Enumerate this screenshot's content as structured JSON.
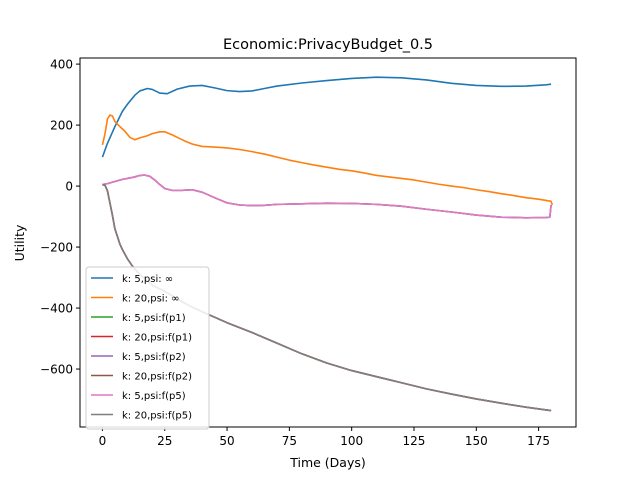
{
  "chart_data": {
    "type": "line",
    "title": "Economic:PrivacyBudget_0.5",
    "xlabel": "Time (Days)",
    "ylabel": "Utility",
    "xlim": [
      -9,
      190
    ],
    "ylim": [
      -790,
      420
    ],
    "xticks": [
      0,
      25,
      50,
      75,
      100,
      125,
      150,
      175
    ],
    "yticks": [
      -600,
      -400,
      -200,
      0,
      200,
      400
    ],
    "ytick_labels": [
      "−600",
      "−400",
      "−200",
      "0",
      "200",
      "400"
    ],
    "grid": false,
    "legend_position": "lower-left",
    "series": [
      {
        "name": "k: 5,psi: ∞",
        "color": "#1f77b4",
        "points": [
          [
            0,
            95
          ],
          [
            2,
            140
          ],
          [
            5,
            195
          ],
          [
            8,
            245
          ],
          [
            10,
            268
          ],
          [
            13,
            298
          ],
          [
            15,
            312
          ],
          [
            18,
            320
          ],
          [
            20,
            317
          ],
          [
            23,
            305
          ],
          [
            26,
            303
          ],
          [
            30,
            318
          ],
          [
            35,
            328
          ],
          [
            40,
            330
          ],
          [
            45,
            322
          ],
          [
            50,
            313
          ],
          [
            55,
            310
          ],
          [
            60,
            312
          ],
          [
            65,
            320
          ],
          [
            70,
            328
          ],
          [
            80,
            338
          ],
          [
            90,
            346
          ],
          [
            100,
            353
          ],
          [
            110,
            357
          ],
          [
            120,
            355
          ],
          [
            130,
            348
          ],
          [
            140,
            337
          ],
          [
            150,
            330
          ],
          [
            160,
            327
          ],
          [
            170,
            328
          ],
          [
            178,
            332
          ],
          [
            180,
            334
          ]
        ]
      },
      {
        "name": "k: 20,psi: ∞",
        "color": "#ff7f0e",
        "points": [
          [
            0,
            135
          ],
          [
            1,
            170
          ],
          [
            2,
            220
          ],
          [
            3,
            233
          ],
          [
            4,
            230
          ],
          [
            5,
            212
          ],
          [
            7,
            195
          ],
          [
            9,
            180
          ],
          [
            11,
            160
          ],
          [
            13,
            152
          ],
          [
            15,
            158
          ],
          [
            18,
            165
          ],
          [
            20,
            172
          ],
          [
            23,
            178
          ],
          [
            25,
            178
          ],
          [
            28,
            168
          ],
          [
            30,
            160
          ],
          [
            33,
            148
          ],
          [
            36,
            138
          ],
          [
            40,
            130
          ],
          [
            45,
            128
          ],
          [
            50,
            125
          ],
          [
            55,
            120
          ],
          [
            60,
            113
          ],
          [
            65,
            105
          ],
          [
            70,
            95
          ],
          [
            75,
            85
          ],
          [
            80,
            77
          ],
          [
            85,
            69
          ],
          [
            90,
            62
          ],
          [
            95,
            55
          ],
          [
            100,
            50
          ],
          [
            105,
            43
          ],
          [
            110,
            35
          ],
          [
            115,
            30
          ],
          [
            120,
            25
          ],
          [
            125,
            20
          ],
          [
            130,
            13
          ],
          [
            135,
            6
          ],
          [
            140,
            0
          ],
          [
            145,
            -5
          ],
          [
            150,
            -12
          ],
          [
            155,
            -18
          ],
          [
            160,
            -25
          ],
          [
            165,
            -31
          ],
          [
            170,
            -38
          ],
          [
            175,
            -43
          ],
          [
            178,
            -47
          ],
          [
            180,
            -50
          ],
          [
            180.5,
            -62
          ]
        ]
      },
      {
        "name": "k: 5,psi:f(p1)",
        "color": "#2ca02c",
        "points": [
          [
            0,
            5
          ],
          [
            2,
            8
          ],
          [
            5,
            15
          ],
          [
            8,
            22
          ],
          [
            10,
            25
          ],
          [
            13,
            30
          ],
          [
            15,
            35
          ],
          [
            17,
            36
          ],
          [
            19,
            32
          ],
          [
            21,
            20
          ],
          [
            23,
            5
          ],
          [
            25,
            -8
          ],
          [
            28,
            -14
          ],
          [
            32,
            -14
          ],
          [
            36,
            -12
          ],
          [
            40,
            -20
          ],
          [
            45,
            -38
          ],
          [
            50,
            -55
          ],
          [
            55,
            -62
          ],
          [
            60,
            -64
          ],
          [
            65,
            -63
          ],
          [
            70,
            -60
          ],
          [
            80,
            -58
          ],
          [
            90,
            -56
          ],
          [
            100,
            -57
          ],
          [
            110,
            -60
          ],
          [
            120,
            -66
          ],
          [
            130,
            -76
          ],
          [
            140,
            -85
          ],
          [
            150,
            -95
          ],
          [
            160,
            -102
          ],
          [
            170,
            -104
          ],
          [
            178,
            -103
          ],
          [
            179.5,
            -102
          ],
          [
            180,
            -62
          ]
        ]
      },
      {
        "name": "k: 20,psi:f(p1)",
        "color": "#d62728",
        "points": [
          [
            0,
            5
          ],
          [
            1,
            3
          ],
          [
            2,
            -15
          ],
          [
            3,
            -55
          ],
          [
            4,
            -95
          ],
          [
            5,
            -140
          ],
          [
            6,
            -165
          ],
          [
            7,
            -190
          ],
          [
            8,
            -208
          ],
          [
            10,
            -238
          ],
          [
            12,
            -262
          ],
          [
            15,
            -290
          ],
          [
            18,
            -310
          ],
          [
            20,
            -325
          ],
          [
            25,
            -345
          ],
          [
            30,
            -370
          ],
          [
            35,
            -393
          ],
          [
            40,
            -412
          ],
          [
            50,
            -448
          ],
          [
            60,
            -480
          ],
          [
            70,
            -515
          ],
          [
            80,
            -550
          ],
          [
            90,
            -580
          ],
          [
            100,
            -605
          ],
          [
            110,
            -625
          ],
          [
            120,
            -645
          ],
          [
            130,
            -665
          ],
          [
            140,
            -682
          ],
          [
            150,
            -698
          ],
          [
            160,
            -712
          ],
          [
            170,
            -725
          ],
          [
            178,
            -734
          ],
          [
            180,
            -736
          ]
        ]
      },
      {
        "name": "k: 5,psi:f(p2)",
        "color": "#9467bd",
        "points": [
          [
            0,
            5
          ],
          [
            2,
            8
          ],
          [
            5,
            15
          ],
          [
            8,
            22
          ],
          [
            10,
            25
          ],
          [
            13,
            30
          ],
          [
            15,
            35
          ],
          [
            17,
            36
          ],
          [
            19,
            32
          ],
          [
            21,
            20
          ],
          [
            23,
            5
          ],
          [
            25,
            -8
          ],
          [
            28,
            -14
          ],
          [
            32,
            -14
          ],
          [
            36,
            -12
          ],
          [
            40,
            -20
          ],
          [
            45,
            -38
          ],
          [
            50,
            -55
          ],
          [
            55,
            -62
          ],
          [
            60,
            -64
          ],
          [
            65,
            -63
          ],
          [
            70,
            -60
          ],
          [
            80,
            -58
          ],
          [
            90,
            -56
          ],
          [
            100,
            -57
          ],
          [
            110,
            -60
          ],
          [
            120,
            -66
          ],
          [
            130,
            -76
          ],
          [
            140,
            -85
          ],
          [
            150,
            -95
          ],
          [
            160,
            -102
          ],
          [
            170,
            -104
          ],
          [
            178,
            -103
          ],
          [
            179.5,
            -102
          ],
          [
            180,
            -62
          ]
        ]
      },
      {
        "name": "k: 20,psi:f(p2)",
        "color": "#8c564b",
        "points": [
          [
            0,
            5
          ],
          [
            1,
            3
          ],
          [
            2,
            -15
          ],
          [
            3,
            -55
          ],
          [
            4,
            -95
          ],
          [
            5,
            -140
          ],
          [
            6,
            -165
          ],
          [
            7,
            -190
          ],
          [
            8,
            -208
          ],
          [
            10,
            -238
          ],
          [
            12,
            -262
          ],
          [
            15,
            -290
          ],
          [
            18,
            -310
          ],
          [
            20,
            -325
          ],
          [
            25,
            -345
          ],
          [
            30,
            -370
          ],
          [
            35,
            -393
          ],
          [
            40,
            -412
          ],
          [
            50,
            -448
          ],
          [
            60,
            -480
          ],
          [
            70,
            -515
          ],
          [
            80,
            -550
          ],
          [
            90,
            -580
          ],
          [
            100,
            -605
          ],
          [
            110,
            -625
          ],
          [
            120,
            -645
          ],
          [
            130,
            -665
          ],
          [
            140,
            -682
          ],
          [
            150,
            -698
          ],
          [
            160,
            -712
          ],
          [
            170,
            -725
          ],
          [
            178,
            -734
          ],
          [
            180,
            -736
          ]
        ]
      },
      {
        "name": "k: 5,psi:f(p5)",
        "color": "#e377c2",
        "points": [
          [
            0,
            5
          ],
          [
            2,
            8
          ],
          [
            5,
            15
          ],
          [
            8,
            22
          ],
          [
            10,
            25
          ],
          [
            13,
            30
          ],
          [
            15,
            35
          ],
          [
            17,
            36
          ],
          [
            19,
            32
          ],
          [
            21,
            20
          ],
          [
            23,
            5
          ],
          [
            25,
            -8
          ],
          [
            28,
            -14
          ],
          [
            32,
            -14
          ],
          [
            36,
            -12
          ],
          [
            40,
            -20
          ],
          [
            45,
            -38
          ],
          [
            50,
            -55
          ],
          [
            55,
            -62
          ],
          [
            60,
            -64
          ],
          [
            65,
            -63
          ],
          [
            70,
            -60
          ],
          [
            80,
            -58
          ],
          [
            90,
            -56
          ],
          [
            100,
            -57
          ],
          [
            110,
            -60
          ],
          [
            120,
            -66
          ],
          [
            130,
            -76
          ],
          [
            140,
            -85
          ],
          [
            150,
            -95
          ],
          [
            160,
            -102
          ],
          [
            170,
            -104
          ],
          [
            178,
            -103
          ],
          [
            179.5,
            -102
          ],
          [
            180,
            -62
          ]
        ]
      },
      {
        "name": "k: 20,psi:f(p5)",
        "color": "#7f7f7f",
        "points": [
          [
            0,
            5
          ],
          [
            1,
            3
          ],
          [
            2,
            -15
          ],
          [
            3,
            -55
          ],
          [
            4,
            -95
          ],
          [
            5,
            -140
          ],
          [
            6,
            -165
          ],
          [
            7,
            -190
          ],
          [
            8,
            -208
          ],
          [
            10,
            -238
          ],
          [
            12,
            -262
          ],
          [
            15,
            -290
          ],
          [
            18,
            -310
          ],
          [
            20,
            -325
          ],
          [
            25,
            -345
          ],
          [
            30,
            -370
          ],
          [
            35,
            -393
          ],
          [
            40,
            -412
          ],
          [
            50,
            -448
          ],
          [
            60,
            -480
          ],
          [
            70,
            -515
          ],
          [
            80,
            -550
          ],
          [
            90,
            -580
          ],
          [
            100,
            -605
          ],
          [
            110,
            -625
          ],
          [
            120,
            -645
          ],
          [
            130,
            -665
          ],
          [
            140,
            -682
          ],
          [
            150,
            -698
          ],
          [
            160,
            -712
          ],
          [
            170,
            -725
          ],
          [
            178,
            -734
          ],
          [
            180,
            -736
          ]
        ]
      }
    ]
  }
}
